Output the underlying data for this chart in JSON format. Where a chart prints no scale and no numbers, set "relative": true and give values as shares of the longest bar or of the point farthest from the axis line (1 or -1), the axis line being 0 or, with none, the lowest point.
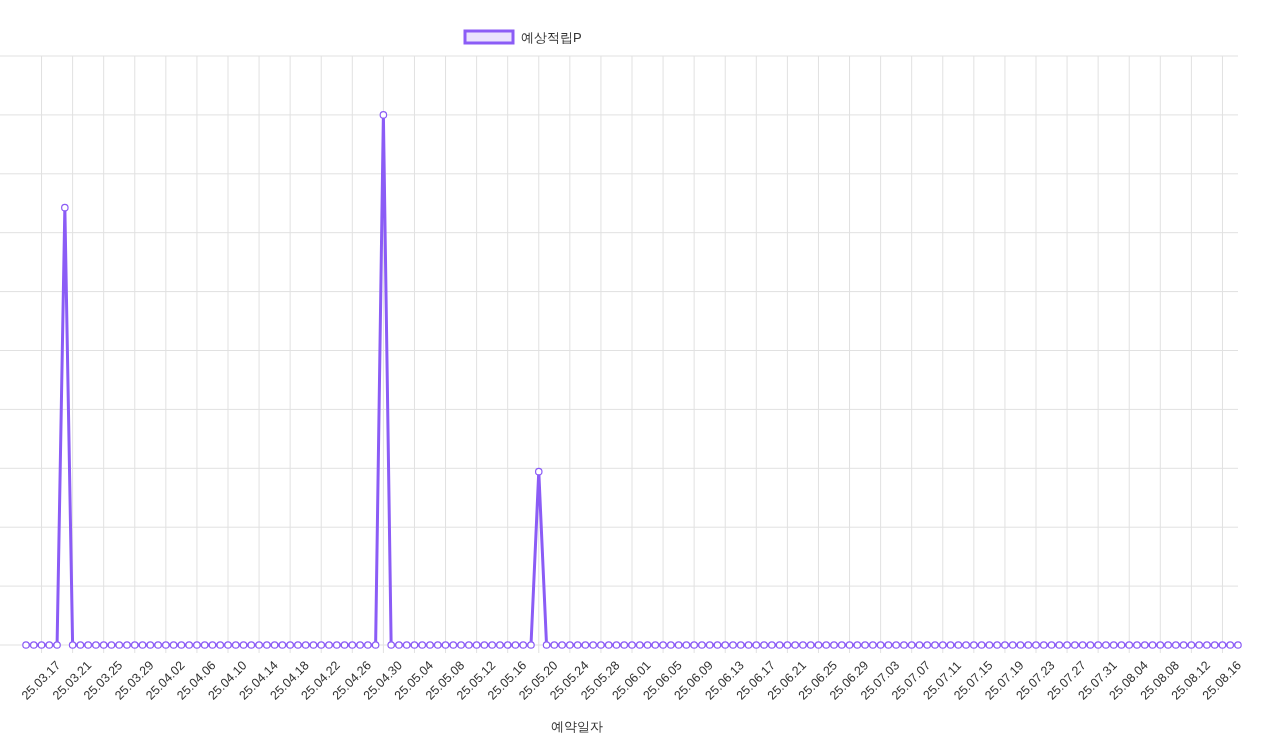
{
  "chart_data": {
    "type": "line",
    "relative": true,
    "grid": true,
    "legend": "top",
    "marker": "circle",
    "xlabel": "예약일자",
    "categories": [
      null,
      null,
      "25.03.17",
      null,
      null,
      null,
      "25.03.21",
      null,
      null,
      null,
      "25.03.25",
      null,
      null,
      null,
      "25.03.29",
      null,
      null,
      null,
      "25.04.02",
      null,
      null,
      null,
      "25.04.06",
      null,
      null,
      null,
      "25.04.10",
      null,
      null,
      null,
      "25.04.14",
      null,
      null,
      null,
      "25.04.18",
      null,
      null,
      null,
      "25.04.22",
      null,
      null,
      null,
      "25.04.26",
      null,
      null,
      null,
      "25.04.30",
      null,
      null,
      null,
      "25.05.04",
      null,
      null,
      null,
      "25.05.08",
      null,
      null,
      null,
      "25.05.12",
      null,
      null,
      null,
      "25.05.16",
      null,
      null,
      null,
      "25.05.20",
      null,
      null,
      null,
      "25.05.24",
      null,
      null,
      null,
      "25.05.28",
      null,
      null,
      null,
      "25.06.01",
      null,
      null,
      null,
      "25.06.05",
      null,
      null,
      null,
      "25.06.09",
      null,
      null,
      null,
      "25.06.13",
      null,
      null,
      null,
      "25.06.17",
      null,
      null,
      null,
      "25.06.21",
      null,
      null,
      null,
      "25.06.25",
      null,
      null,
      null,
      "25.06.29",
      null,
      null,
      null,
      "25.07.03",
      null,
      null,
      null,
      "25.07.07",
      null,
      null,
      null,
      "25.07.11",
      null,
      null,
      null,
      "25.07.15",
      null,
      null,
      null,
      "25.07.19",
      null,
      null,
      null,
      "25.07.23",
      null,
      null,
      null,
      "25.07.27",
      null,
      null,
      null,
      "25.07.31",
      null,
      null,
      null,
      "25.08.04",
      null,
      null,
      null,
      "25.08.08",
      null,
      null,
      null,
      "25.08.12",
      null,
      null,
      null,
      "25.08.16",
      null,
      null
    ],
    "series": [
      {
        "name": "예상적립P",
        "color": "#8b5cf6",
        "values": [
          0,
          0,
          0,
          0,
          0,
          0.825,
          0,
          0,
          0,
          0,
          0,
          0,
          0,
          0,
          0,
          0,
          0,
          0,
          0,
          0,
          0,
          0,
          0,
          0,
          0,
          0,
          0,
          0,
          0,
          0,
          0,
          0,
          0,
          0,
          0,
          0,
          0,
          0,
          0,
          0,
          0,
          0,
          0,
          0,
          0,
          0,
          1,
          0,
          0,
          0,
          0,
          0,
          0,
          0,
          0,
          0,
          0,
          0,
          0,
          0,
          0,
          0,
          0,
          0,
          0,
          0,
          0.327,
          0,
          0,
          0,
          0,
          0,
          0,
          0,
          0,
          0,
          0,
          0,
          0,
          0,
          0,
          0,
          0,
          0,
          0,
          0,
          0,
          0,
          0,
          0,
          0,
          0,
          0,
          0,
          0,
          0,
          0,
          0,
          0,
          0,
          0,
          0,
          0,
          0,
          0,
          0,
          0,
          0,
          0,
          0,
          0,
          0,
          0,
          0,
          0,
          0,
          0,
          0,
          0,
          0,
          0,
          0,
          0,
          0,
          0,
          0,
          0,
          0,
          0,
          0,
          0,
          0,
          0,
          0,
          0,
          0,
          0,
          0,
          0,
          0,
          0,
          0,
          0,
          0,
          0,
          0,
          0,
          0,
          0,
          0,
          0,
          0,
          0,
          0,
          0,
          0,
          0
        ]
      }
    ]
  }
}
